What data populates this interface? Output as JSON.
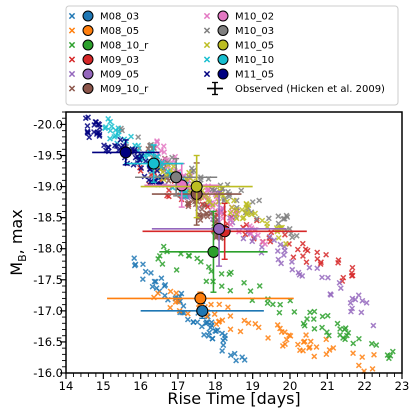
{
  "chart_data": {
    "type": "scatter",
    "xlabel": "Rise Time [days]",
    "ylabel_main": "M",
    "ylabel_sub": "B",
    "ylabel_rest": ", max",
    "xlim": [
      14,
      23
    ],
    "ylim": [
      -16.0,
      -20.2
    ],
    "y_inverted": true,
    "x_ticks": [
      14,
      15,
      16,
      17,
      18,
      19,
      20,
      21,
      22,
      23
    ],
    "x_tick_labels": [
      "14",
      "15",
      "16",
      "17",
      "18",
      "19",
      "20",
      "21",
      "22",
      "23"
    ],
    "y_ticks": [
      -16.0,
      -16.5,
      -17.0,
      -17.5,
      -18.0,
      -18.5,
      -19.0,
      -19.5,
      -20.0
    ],
    "y_tick_labels": [
      "-16.0",
      "-16.5",
      "-17.0",
      "-17.5",
      "-18.0",
      "-18.5",
      "-19.0",
      "-19.5",
      "-20.0"
    ],
    "legend_position": "top, above plot",
    "legend_columns": 2,
    "models": [
      {
        "name": "M08_03",
        "color": "#1f77b4",
        "x": 17.65,
        "y": -17.0,
        "xerr": 1.65,
        "yerr": 0.12,
        "cloud": {
          "x": [
            15.8,
            18.8
          ],
          "y": [
            -17.8,
            -16.2
          ]
        }
      },
      {
        "name": "M08_05",
        "color": "#ff7f0e",
        "x": 17.6,
        "y": -17.2,
        "xerr": 2.5,
        "yerr": 0.1,
        "cloud": {
          "x": [
            16.2,
            22.4
          ],
          "y": [
            -17.3,
            -16.1
          ]
        }
      },
      {
        "name": "M08_10_r",
        "color": "#2ca02c",
        "x": 17.95,
        "y": -17.95,
        "xerr": 1.45,
        "yerr": 0.65,
        "cloud": {
          "x": [
            16.3,
            22.8
          ],
          "y": [
            -18.0,
            -16.3
          ]
        }
      },
      {
        "name": "M09_03",
        "color": "#d62728",
        "x": 18.25,
        "y": -18.28,
        "xerr": 2.2,
        "yerr": 0.45,
        "cloud": {
          "x": [
            15.9,
            21.9
          ],
          "y": [
            -19.2,
            -17.5
          ]
        }
      },
      {
        "name": "M09_05",
        "color": "#9467bd",
        "x": 18.1,
        "y": -18.32,
        "xerr": 1.8,
        "yerr": 0.6,
        "cloud": {
          "x": [
            16.2,
            22.3
          ],
          "y": [
            -19.3,
            -16.9
          ]
        }
      },
      {
        "name": "M09_10_r",
        "color": "#8c564b",
        "x": 17.5,
        "y": -18.88,
        "xerr": 1.2,
        "yerr": 0.5,
        "cloud": {
          "x": [
            16.2,
            18.2
          ],
          "y": [
            -19.6,
            -18.2
          ]
        }
      },
      {
        "name": "M10_02",
        "color": "#e377c2",
        "x": 17.1,
        "y": -19.02,
        "xerr": 1.0,
        "yerr": 0.35,
        "cloud": {
          "x": [
            16.4,
            19.4
          ],
          "y": [
            -19.6,
            -18.0
          ]
        }
      },
      {
        "name": "M10_03",
        "color": "#7f7f7f",
        "x": 16.95,
        "y": -19.15,
        "xerr": 1.1,
        "yerr": 0.3,
        "cloud": {
          "x": [
            15.4,
            20.2
          ],
          "y": [
            -19.8,
            -18.3
          ]
        }
      },
      {
        "name": "M10_05",
        "color": "#bcbd22",
        "x": 17.5,
        "y": -19.0,
        "xerr": 1.5,
        "yerr": 0.5,
        "cloud": {
          "x": [
            16.5,
            20.0
          ],
          "y": [
            -19.3,
            -18.2
          ]
        }
      },
      {
        "name": "M10_10",
        "color": "#17becf",
        "x": 16.35,
        "y": -19.37,
        "xerr": 0.8,
        "yerr": 0.3,
        "cloud": {
          "x": [
            15.0,
            17.3
          ],
          "y": [
            -20.0,
            -18.9
          ]
        }
      },
      {
        "name": "M11_05",
        "color": "#000080",
        "x": 15.6,
        "y": -19.55,
        "xerr": 0.9,
        "yerr": 0.2,
        "cloud": {
          "x": [
            14.5,
            16.6
          ],
          "y": [
            -20.0,
            -19.1
          ]
        }
      }
    ],
    "observed_label": "Observed (Hicken et al. 2009)"
  }
}
